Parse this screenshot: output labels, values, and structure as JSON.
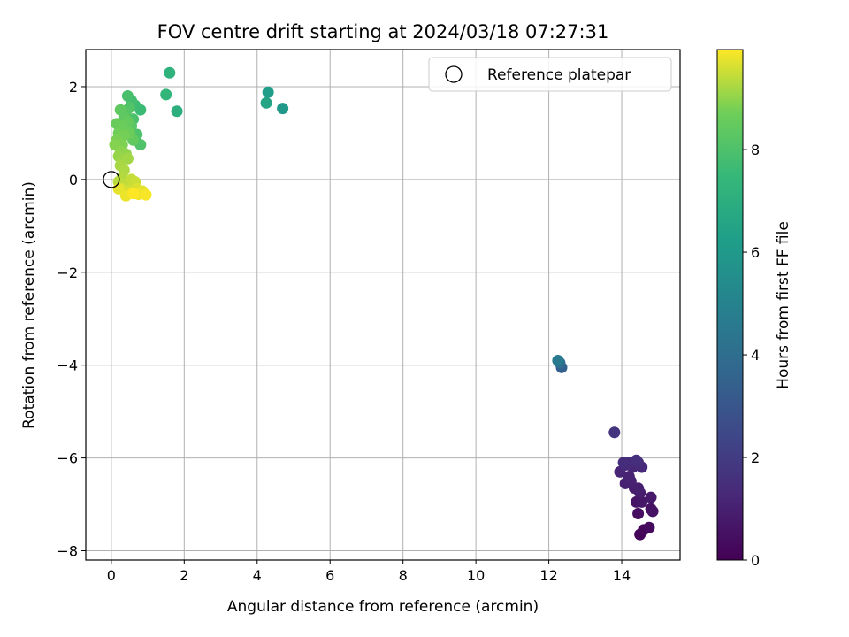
{
  "chart_data": {
    "type": "scatter",
    "title": "FOV centre drift starting at 2024/03/18 07:27:31",
    "xlabel": "Angular distance from reference (arcmin)",
    "ylabel": "Rotation from reference (arcmin)",
    "xlim": [
      -0.7,
      15.6
    ],
    "ylim": [
      -8.2,
      2.8
    ],
    "xticks": [
      0,
      2,
      4,
      6,
      8,
      10,
      12,
      14
    ],
    "yticks": [
      -8,
      -6,
      -4,
      -2,
      0,
      2
    ],
    "grid": true,
    "legend": {
      "placement": "top-right",
      "entries": [
        "Reference platepar"
      ]
    },
    "colorbar": {
      "label": "Hours from first FF file",
      "range": [
        0,
        9.95
      ],
      "ticks": [
        0,
        2,
        4,
        6,
        8
      ],
      "colormap": "viridis"
    },
    "reference_point": {
      "name": "Reference platepar",
      "x": 0,
      "y": 0
    },
    "series": [
      {
        "points": [
          {
            "x": 14.5,
            "y": -7.65,
            "t": 0.1
          },
          {
            "x": 14.6,
            "y": -7.55,
            "t": 0.2
          },
          {
            "x": 14.75,
            "y": -7.5,
            "t": 0.3
          },
          {
            "x": 14.45,
            "y": -7.2,
            "t": 0.4
          },
          {
            "x": 14.8,
            "y": -7.1,
            "t": 0.5
          },
          {
            "x": 14.85,
            "y": -7.15,
            "t": 0.55
          },
          {
            "x": 14.4,
            "y": -6.95,
            "t": 0.65
          },
          {
            "x": 14.55,
            "y": -6.95,
            "t": 0.7
          },
          {
            "x": 14.8,
            "y": -6.85,
            "t": 0.75
          },
          {
            "x": 14.5,
            "y": -6.75,
            "t": 0.85
          },
          {
            "x": 14.35,
            "y": -6.65,
            "t": 0.9
          },
          {
            "x": 14.45,
            "y": -6.65,
            "t": 0.95
          },
          {
            "x": 14.1,
            "y": -6.55,
            "t": 1.0
          },
          {
            "x": 14.25,
            "y": -6.5,
            "t": 1.05
          },
          {
            "x": 14.2,
            "y": -6.4,
            "t": 1.1
          },
          {
            "x": 13.95,
            "y": -6.3,
            "t": 1.15
          },
          {
            "x": 14.3,
            "y": -6.2,
            "t": 1.2
          },
          {
            "x": 14.55,
            "y": -6.2,
            "t": 1.25
          },
          {
            "x": 14.1,
            "y": -6.15,
            "t": 1.3
          },
          {
            "x": 14.2,
            "y": -6.1,
            "t": 1.35
          },
          {
            "x": 14.45,
            "y": -6.1,
            "t": 1.4
          },
          {
            "x": 14.05,
            "y": -6.1,
            "t": 1.45
          },
          {
            "x": 14.4,
            "y": -6.05,
            "t": 1.5
          },
          {
            "x": 13.8,
            "y": -5.45,
            "t": 1.7
          },
          {
            "x": 12.35,
            "y": -4.05,
            "t": 3.4
          },
          {
            "x": 12.3,
            "y": -3.95,
            "t": 4.0
          },
          {
            "x": 12.25,
            "y": -3.9,
            "t": 4.6
          },
          {
            "x": 4.7,
            "y": 1.53,
            "t": 6.0
          },
          {
            "x": 4.3,
            "y": 1.88,
            "t": 6.2
          },
          {
            "x": 4.25,
            "y": 1.65,
            "t": 6.5
          },
          {
            "x": 1.8,
            "y": 1.47,
            "t": 7.0
          },
          {
            "x": 1.6,
            "y": 2.3,
            "t": 7.2
          },
          {
            "x": 1.5,
            "y": 1.83,
            "t": 7.35
          },
          {
            "x": 0.8,
            "y": 1.5,
            "t": 7.6
          },
          {
            "x": 0.65,
            "y": 1.6,
            "t": 7.7
          },
          {
            "x": 0.55,
            "y": 1.7,
            "t": 7.8
          },
          {
            "x": 0.45,
            "y": 1.8,
            "t": 7.9
          },
          {
            "x": 0.6,
            "y": 1.3,
            "t": 7.95
          },
          {
            "x": 0.7,
            "y": 0.97,
            "t": 8.0
          },
          {
            "x": 0.8,
            "y": 0.75,
            "t": 8.05
          },
          {
            "x": 0.5,
            "y": 1.55,
            "t": 8.1
          },
          {
            "x": 0.4,
            "y": 1.45,
            "t": 8.2
          },
          {
            "x": 0.55,
            "y": 1.15,
            "t": 8.3
          },
          {
            "x": 0.35,
            "y": 1.35,
            "t": 8.35
          },
          {
            "x": 0.25,
            "y": 1.5,
            "t": 8.4
          },
          {
            "x": 0.6,
            "y": 0.85,
            "t": 8.45
          },
          {
            "x": 0.45,
            "y": 1.25,
            "t": 8.5
          },
          {
            "x": 0.15,
            "y": 1.2,
            "t": 8.55
          },
          {
            "x": 0.3,
            "y": 1.15,
            "t": 8.6
          },
          {
            "x": 0.5,
            "y": 1.0,
            "t": 8.65
          },
          {
            "x": 0.2,
            "y": 1.0,
            "t": 8.7
          },
          {
            "x": 0.35,
            "y": 0.95,
            "t": 8.75
          },
          {
            "x": 0.15,
            "y": 0.85,
            "t": 8.8
          },
          {
            "x": 0.3,
            "y": 0.75,
            "t": 8.85
          },
          {
            "x": 0.1,
            "y": 0.75,
            "t": 8.9
          },
          {
            "x": 0.25,
            "y": 0.6,
            "t": 8.95
          },
          {
            "x": 0.4,
            "y": 0.55,
            "t": 9.0
          },
          {
            "x": 0.2,
            "y": 0.5,
            "t": 9.05
          },
          {
            "x": 0.3,
            "y": 0.4,
            "t": 9.1
          },
          {
            "x": 0.45,
            "y": 0.45,
            "t": 9.15
          },
          {
            "x": 0.25,
            "y": 0.3,
            "t": 9.2
          },
          {
            "x": 0.35,
            "y": 0.2,
            "t": 9.25
          },
          {
            "x": 0.3,
            "y": 0.05,
            "t": 9.3
          },
          {
            "x": 0.2,
            "y": -0.05,
            "t": 9.35
          },
          {
            "x": 0.4,
            "y": -0.1,
            "t": 9.4
          },
          {
            "x": 0.55,
            "y": 0.0,
            "t": 9.45
          },
          {
            "x": 0.65,
            "y": -0.05,
            "t": 9.5
          },
          {
            "x": 0.3,
            "y": -0.2,
            "t": 9.55
          },
          {
            "x": 0.5,
            "y": -0.25,
            "t": 9.6
          },
          {
            "x": 0.7,
            "y": -0.2,
            "t": 9.65
          },
          {
            "x": 0.85,
            "y": -0.25,
            "t": 9.7
          },
          {
            "x": 0.2,
            "y": -0.2,
            "t": 9.75
          },
          {
            "x": 0.4,
            "y": -0.35,
            "t": 9.8
          },
          {
            "x": 0.75,
            "y": -0.32,
            "t": 9.85
          },
          {
            "x": 0.95,
            "y": -0.33,
            "t": 9.9
          },
          {
            "x": 0.6,
            "y": -0.3,
            "t": 9.95
          }
        ]
      }
    ]
  }
}
